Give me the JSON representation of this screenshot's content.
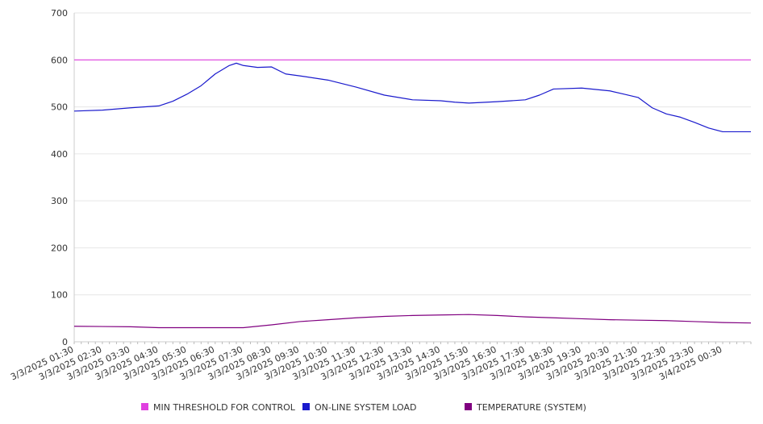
{
  "chart_data": {
    "type": "line",
    "title": "",
    "xlabel": "",
    "ylabel": "",
    "ylim": [
      0,
      700
    ],
    "y_ticks": [
      "0",
      "100",
      "200",
      "300",
      "400",
      "500",
      "600",
      "700"
    ],
    "x_tick_labels": [
      "3/3/2025 01:30",
      "3/3/2025 02:30",
      "3/3/2025 03:30",
      "3/3/2025 04:30",
      "3/3/2025 05:30",
      "3/3/2025 06:30",
      "3/3/2025 07:30",
      "3/3/2025 08:30",
      "3/3/2025 09:30",
      "3/3/2025 10:30",
      "3/3/2025 11:30",
      "3/3/2025 12:30",
      "3/3/2025 13:30",
      "3/3/2025 14:30",
      "3/3/2025 15:30",
      "3/3/2025 16:30",
      "3/3/2025 17:30",
      "3/3/2025 18:30",
      "3/3/2025 19:30",
      "3/3/2025 20:30",
      "3/3/2025 21:30",
      "3/3/2025 22:30",
      "3/3/2025 23:30",
      "3/4/2025 00:30"
    ],
    "x_range": [
      "3/3/2025 01:30",
      "3/4/2025 01:30"
    ],
    "grid": true,
    "legend_position": "bottom",
    "series": [
      {
        "name": "MIN THRESHOLD FOR CONTROL",
        "color": "#e040e0",
        "x": [
          "3/3/2025 01:30",
          "3/4/2025 01:30"
        ],
        "values": [
          600,
          600
        ]
      },
      {
        "name": "ON-LINE SYSTEM LOAD",
        "color": "#1a1acd",
        "x": [
          "3/3/2025 01:30",
          "3/3/2025 02:30",
          "3/3/2025 03:30",
          "3/3/2025 04:30",
          "3/3/2025 05:00",
          "3/3/2025 05:30",
          "3/3/2025 06:00",
          "3/3/2025 06:30",
          "3/3/2025 07:00",
          "3/3/2025 07:15",
          "3/3/2025 07:30",
          "3/3/2025 08:00",
          "3/3/2025 08:30",
          "3/3/2025 09:00",
          "3/3/2025 09:30",
          "3/3/2025 10:30",
          "3/3/2025 11:30",
          "3/3/2025 12:30",
          "3/3/2025 13:30",
          "3/3/2025 14:30",
          "3/3/2025 15:00",
          "3/3/2025 15:30",
          "3/3/2025 16:30",
          "3/3/2025 17:30",
          "3/3/2025 18:00",
          "3/3/2025 18:30",
          "3/3/2025 19:30",
          "3/3/2025 20:30",
          "3/3/2025 21:00",
          "3/3/2025 21:30",
          "3/3/2025 22:00",
          "3/3/2025 22:30",
          "3/3/2025 23:00",
          "3/3/2025 23:30",
          "3/4/2025 00:00",
          "3/4/2025 00:30",
          "3/4/2025 01:30"
        ],
        "values": [
          491,
          493,
          498,
          502,
          512,
          527,
          545,
          570,
          588,
          593,
          588,
          584,
          585,
          570,
          566,
          557,
          542,
          525,
          515,
          513,
          510,
          508,
          511,
          515,
          525,
          538,
          540,
          534,
          527,
          520,
          498,
          485,
          478,
          467,
          455,
          447,
          447
        ]
      },
      {
        "name": "TEMPERATURE (SYSTEM)",
        "color": "#800080",
        "x": [
          "3/3/2025 01:30",
          "3/3/2025 03:30",
          "3/3/2025 04:30",
          "3/3/2025 06:30",
          "3/3/2025 07:30",
          "3/3/2025 08:30",
          "3/3/2025 09:30",
          "3/3/2025 10:30",
          "3/3/2025 11:30",
          "3/3/2025 12:30",
          "3/3/2025 13:30",
          "3/3/2025 14:30",
          "3/3/2025 15:30",
          "3/3/2025 16:30",
          "3/3/2025 17:30",
          "3/3/2025 18:30",
          "3/3/2025 19:30",
          "3/3/2025 20:30",
          "3/3/2025 21:30",
          "3/3/2025 22:30",
          "3/3/2025 23:30",
          "3/4/2025 00:30",
          "3/4/2025 01:30"
        ],
        "values": [
          33,
          32,
          30,
          30,
          30,
          36,
          43,
          47,
          51,
          54,
          56,
          57,
          58,
          56,
          53,
          51,
          49,
          47,
          46,
          45,
          43,
          41,
          40
        ]
      }
    ]
  }
}
